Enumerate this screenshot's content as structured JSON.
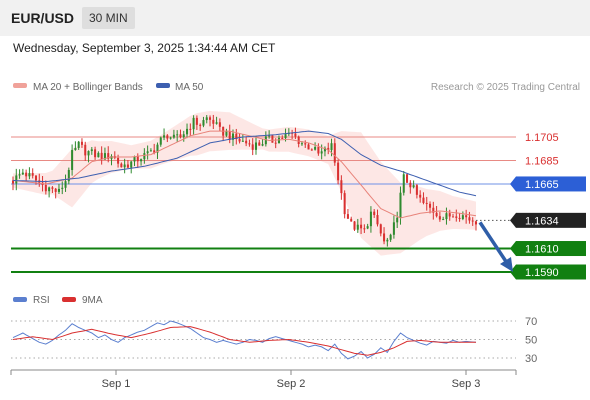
{
  "header": {
    "pair": "EUR/USD",
    "timeframe": "30 MIN"
  },
  "timestamp": "Wednesday, September 3, 2025 1:34:44 AM CET",
  "legend": {
    "bollinger": "MA 20 + Bollinger Bands",
    "ma50": "MA 50",
    "rsi": "RSI",
    "rsi_ma": "9MA"
  },
  "watermark": "Research © 2025 Trading Central",
  "colors": {
    "bullish": "#2f8a2f",
    "bearish": "#d93030",
    "ma50": "#3d5fb0",
    "ma20": "#e8837a",
    "band_fill": "#fde3e0",
    "resistance": "#d93030",
    "pivot": "#2c5fd6",
    "support": "#118011",
    "current": "#222222",
    "rsi": "#5b7fcf",
    "rsi_ma": "#d93030"
  },
  "chart_data": [
    {
      "type": "candlestick",
      "instrument": "EUR/USD",
      "timeframe": "30 MIN",
      "x_ticks": [
        "Sep 1",
        "Sep 2",
        "Sep 3"
      ],
      "ylim": [
        1.158,
        1.173
      ],
      "levels": [
        {
          "label": "1.1705",
          "value": 1.1705,
          "kind": "resistance"
        },
        {
          "label": "1.1685",
          "value": 1.1685,
          "kind": "resistance"
        },
        {
          "label": "1.1665",
          "value": 1.1665,
          "kind": "pivot"
        },
        {
          "label": "1.1634",
          "value": 1.1634,
          "kind": "current"
        },
        {
          "label": "1.1610",
          "value": 1.161,
          "kind": "support"
        },
        {
          "label": "1.1590",
          "value": 1.159,
          "kind": "support"
        }
      ],
      "close_path": [
        [
          0,
          1.1668
        ],
        [
          3,
          1.1675
        ],
        [
          6,
          1.167
        ],
        [
          9,
          1.1664
        ],
        [
          12,
          1.166
        ],
        [
          14,
          1.1658
        ],
        [
          16,
          1.1668
        ],
        [
          18,
          1.169
        ],
        [
          20,
          1.1698
        ],
        [
          22,
          1.1693
        ],
        [
          25,
          1.169
        ],
        [
          28,
          1.1688
        ],
        [
          30,
          1.169
        ],
        [
          33,
          1.168
        ],
        [
          36,
          1.1683
        ],
        [
          39,
          1.1688
        ],
        [
          41,
          1.169
        ],
        [
          43,
          1.1695
        ],
        [
          45,
          1.1702
        ],
        [
          47,
          1.1707
        ],
        [
          49,
          1.1703
        ],
        [
          51,
          1.1705
        ],
        [
          53,
          1.1712
        ],
        [
          55,
          1.1718
        ],
        [
          57,
          1.1716
        ],
        [
          59,
          1.1721
        ],
        [
          61,
          1.1718
        ],
        [
          63,
          1.171
        ],
        [
          65,
          1.1708
        ],
        [
          67,
          1.1704
        ],
        [
          69,
          1.1702
        ],
        [
          71,
          1.17
        ],
        [
          73,
          1.1698
        ],
        [
          75,
          1.1699
        ],
        [
          77,
          1.1703
        ],
        [
          79,
          1.1702
        ],
        [
          81,
          1.1704
        ],
        [
          83,
          1.1706
        ],
        [
          85,
          1.1707
        ],
        [
          87,
          1.1702
        ],
        [
          89,
          1.1698
        ],
        [
          91,
          1.1696
        ],
        [
          93,
          1.169
        ],
        [
          95,
          1.1693
        ],
        [
          97,
          1.1697
        ],
        [
          99,
          1.167
        ],
        [
          101,
          1.1643
        ],
        [
          103,
          1.163
        ],
        [
          105,
          1.1627
        ],
        [
          107,
          1.1625
        ],
        [
          109,
          1.164
        ],
        [
          111,
          1.163
        ],
        [
          113,
          1.1615
        ],
        [
          115,
          1.1618
        ],
        [
          117,
          1.164
        ],
        [
          119,
          1.167
        ],
        [
          121,
          1.1665
        ],
        [
          123,
          1.1655
        ],
        [
          125,
          1.1648
        ],
        [
          127,
          1.1644
        ],
        [
          129,
          1.164
        ],
        [
          131,
          1.1636
        ],
        [
          133,
          1.1638
        ],
        [
          135,
          1.164
        ],
        [
          137,
          1.1638
        ],
        [
          139,
          1.1635
        ],
        [
          141,
          1.1634
        ]
      ],
      "ma20_path": [
        [
          0,
          1.1668
        ],
        [
          10,
          1.1665
        ],
        [
          18,
          1.167
        ],
        [
          24,
          1.1684
        ],
        [
          30,
          1.1688
        ],
        [
          36,
          1.1688
        ],
        [
          42,
          1.169
        ],
        [
          48,
          1.1698
        ],
        [
          54,
          1.1706
        ],
        [
          60,
          1.171
        ],
        [
          66,
          1.171
        ],
        [
          72,
          1.1706
        ],
        [
          78,
          1.1702
        ],
        [
          84,
          1.1703
        ],
        [
          90,
          1.17
        ],
        [
          96,
          1.1694
        ],
        [
          100,
          1.1684
        ],
        [
          106,
          1.1664
        ],
        [
          112,
          1.1644
        ],
        [
          118,
          1.1636
        ],
        [
          124,
          1.164
        ],
        [
          130,
          1.1642
        ],
        [
          136,
          1.164
        ],
        [
          141,
          1.1638
        ]
      ],
      "ma50_path": [
        [
          0,
          1.1668
        ],
        [
          10,
          1.1667
        ],
        [
          20,
          1.167
        ],
        [
          30,
          1.1676
        ],
        [
          40,
          1.168
        ],
        [
          50,
          1.1687
        ],
        [
          60,
          1.17
        ],
        [
          70,
          1.1705
        ],
        [
          80,
          1.1707
        ],
        [
          90,
          1.171
        ],
        [
          96,
          1.1708
        ],
        [
          100,
          1.1703
        ],
        [
          106,
          1.169
        ],
        [
          112,
          1.1681
        ],
        [
          118,
          1.1676
        ],
        [
          124,
          1.167
        ],
        [
          130,
          1.1664
        ],
        [
          136,
          1.1658
        ],
        [
          141,
          1.1655
        ]
      ],
      "band_width_path": [
        [
          0,
          0.0006
        ],
        [
          12,
          0.001
        ],
        [
          18,
          0.0025
        ],
        [
          26,
          0.0016
        ],
        [
          36,
          0.001
        ],
        [
          46,
          0.0013
        ],
        [
          56,
          0.0018
        ],
        [
          66,
          0.0016
        ],
        [
          76,
          0.0009
        ],
        [
          86,
          0.0011
        ],
        [
          96,
          0.0012
        ],
        [
          100,
          0.0026
        ],
        [
          106,
          0.0045
        ],
        [
          112,
          0.004
        ],
        [
          118,
          0.003
        ],
        [
          126,
          0.002
        ],
        [
          134,
          0.0014
        ],
        [
          141,
          0.0012
        ]
      ],
      "forecast": {
        "from": 1.1634,
        "to": 1.159
      }
    },
    {
      "type": "line",
      "title": "RSI",
      "ylim": [
        20,
        80
      ],
      "y_ticks": [
        70,
        50,
        30
      ],
      "rsi_path": [
        [
          0,
          52
        ],
        [
          3,
          57
        ],
        [
          6,
          51
        ],
        [
          8,
          47
        ],
        [
          10,
          45
        ],
        [
          12,
          49
        ],
        [
          14,
          55
        ],
        [
          16,
          60
        ],
        [
          18,
          67
        ],
        [
          20,
          63
        ],
        [
          22,
          60
        ],
        [
          24,
          57
        ],
        [
          26,
          52
        ],
        [
          28,
          55
        ],
        [
          30,
          50
        ],
        [
          32,
          47
        ],
        [
          34,
          52
        ],
        [
          36,
          55
        ],
        [
          38,
          58
        ],
        [
          40,
          60
        ],
        [
          42,
          64
        ],
        [
          44,
          68
        ],
        [
          46,
          66
        ],
        [
          48,
          70
        ],
        [
          50,
          68
        ],
        [
          52,
          65
        ],
        [
          54,
          62
        ],
        [
          56,
          57
        ],
        [
          58,
          52
        ],
        [
          60,
          50
        ],
        [
          62,
          47
        ],
        [
          64,
          49
        ],
        [
          66,
          47
        ],
        [
          68,
          45
        ],
        [
          70,
          47
        ],
        [
          72,
          50
        ],
        [
          74,
          49
        ],
        [
          76,
          47
        ],
        [
          78,
          51
        ],
        [
          80,
          53
        ],
        [
          82,
          51
        ],
        [
          84,
          49
        ],
        [
          86,
          47
        ],
        [
          88,
          45
        ],
        [
          90,
          42
        ],
        [
          92,
          44
        ],
        [
          94,
          42
        ],
        [
          96,
          38
        ],
        [
          98,
          45
        ],
        [
          100,
          35
        ],
        [
          102,
          29
        ],
        [
          104,
          32
        ],
        [
          106,
          37
        ],
        [
          108,
          30
        ],
        [
          110,
          34
        ],
        [
          112,
          41
        ],
        [
          114,
          36
        ],
        [
          116,
          48
        ],
        [
          118,
          57
        ],
        [
          120,
          52
        ],
        [
          122,
          49
        ],
        [
          124,
          46
        ],
        [
          126,
          44
        ],
        [
          128,
          48
        ],
        [
          130,
          47
        ],
        [
          132,
          46
        ],
        [
          134,
          49
        ],
        [
          136,
          47
        ],
        [
          138,
          48
        ],
        [
          141,
          47
        ]
      ],
      "rsi_ma_path": [
        [
          0,
          50
        ],
        [
          6,
          53
        ],
        [
          12,
          50
        ],
        [
          18,
          57
        ],
        [
          24,
          61
        ],
        [
          30,
          56
        ],
        [
          36,
          52
        ],
        [
          42,
          57
        ],
        [
          48,
          63
        ],
        [
          54,
          64
        ],
        [
          60,
          58
        ],
        [
          66,
          50
        ],
        [
          72,
          47
        ],
        [
          78,
          49
        ],
        [
          84,
          50
        ],
        [
          90,
          47
        ],
        [
          96,
          43
        ],
        [
          100,
          39
        ],
        [
          104,
          35
        ],
        [
          108,
          33
        ],
        [
          112,
          36
        ],
        [
          116,
          41
        ],
        [
          120,
          48
        ],
        [
          124,
          49
        ],
        [
          130,
          47
        ],
        [
          136,
          47
        ],
        [
          141,
          47
        ]
      ]
    }
  ]
}
